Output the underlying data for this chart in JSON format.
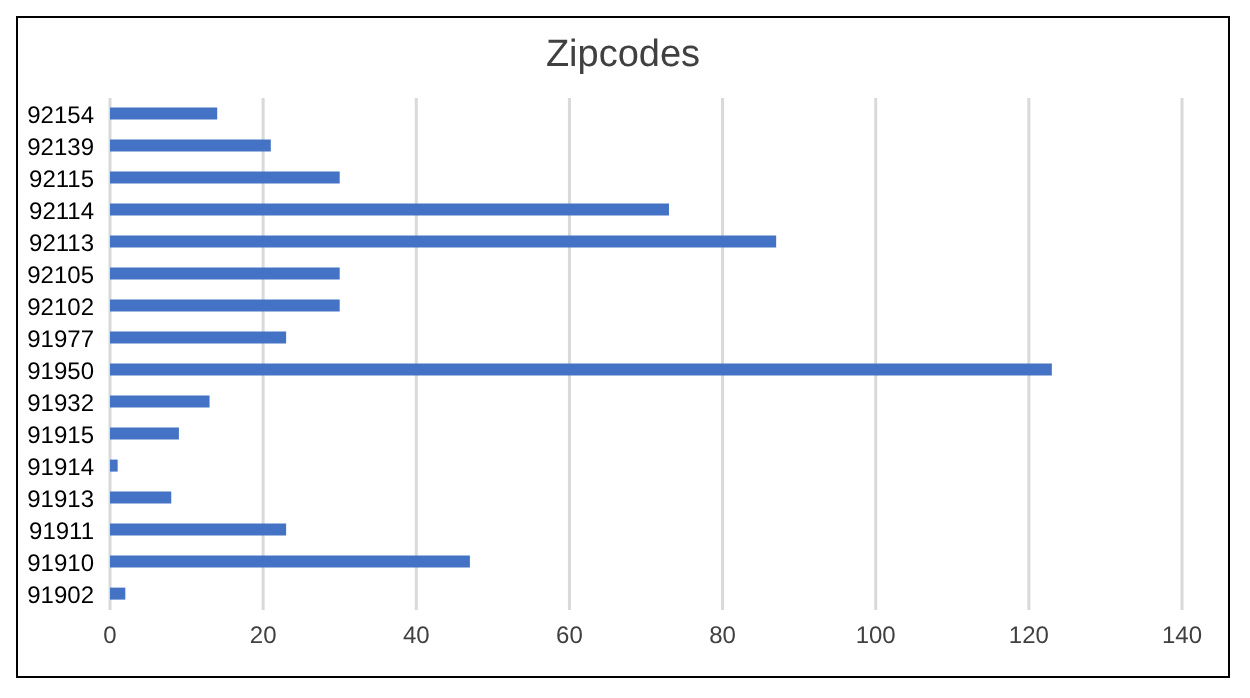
{
  "chart_data": {
    "type": "bar",
    "orientation": "horizontal",
    "title": "Zipcodes",
    "categories": [
      "92154",
      "92139",
      "92115",
      "92114",
      "92113",
      "92105",
      "92102",
      "91977",
      "91950",
      "91932",
      "91915",
      "91914",
      "91913",
      "91911",
      "91910",
      "91902"
    ],
    "values": [
      14,
      21,
      30,
      73,
      87,
      30,
      30,
      23,
      123,
      13,
      9,
      1,
      8,
      23,
      47,
      2
    ],
    "color": "#4472c4",
    "xlim": [
      0,
      140
    ],
    "xticks": [
      0,
      20,
      40,
      60,
      80,
      100,
      120,
      140
    ],
    "grid": "x"
  }
}
